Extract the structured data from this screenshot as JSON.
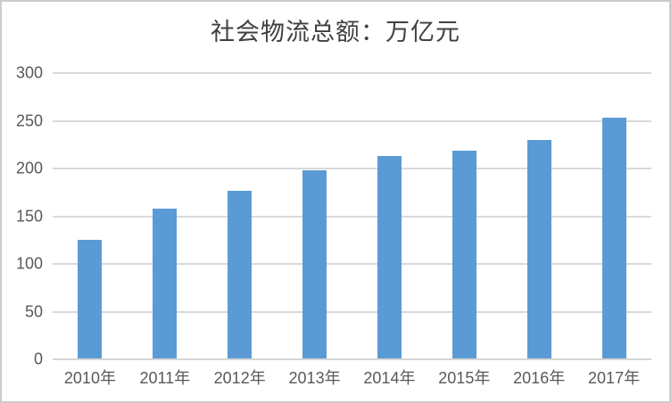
{
  "title": "社会物流总额：万亿元",
  "colors": {
    "bar": "#5b9bd5",
    "gridline": "#d9d9d9",
    "axis_line": "#d6d6d6",
    "axis_text": "#595959",
    "title_text": "#404040",
    "border": "#cbcbcb",
    "background": "#ffffff"
  },
  "chart_data": {
    "type": "bar",
    "title": "社会物流总额：万亿元",
    "categories": [
      "2010年",
      "2011年",
      "2012年",
      "2013年",
      "2014年",
      "2015年",
      "2016年",
      "2017年"
    ],
    "values": [
      125,
      158,
      177,
      198,
      213,
      219,
      230,
      253
    ],
    "xlabel": "",
    "ylabel": "",
    "ylim": [
      0,
      300
    ],
    "yticks": [
      0,
      50,
      100,
      150,
      200,
      250,
      300
    ],
    "grid": true,
    "legend_position": "none",
    "bar_color": "#5b9bd5"
  }
}
